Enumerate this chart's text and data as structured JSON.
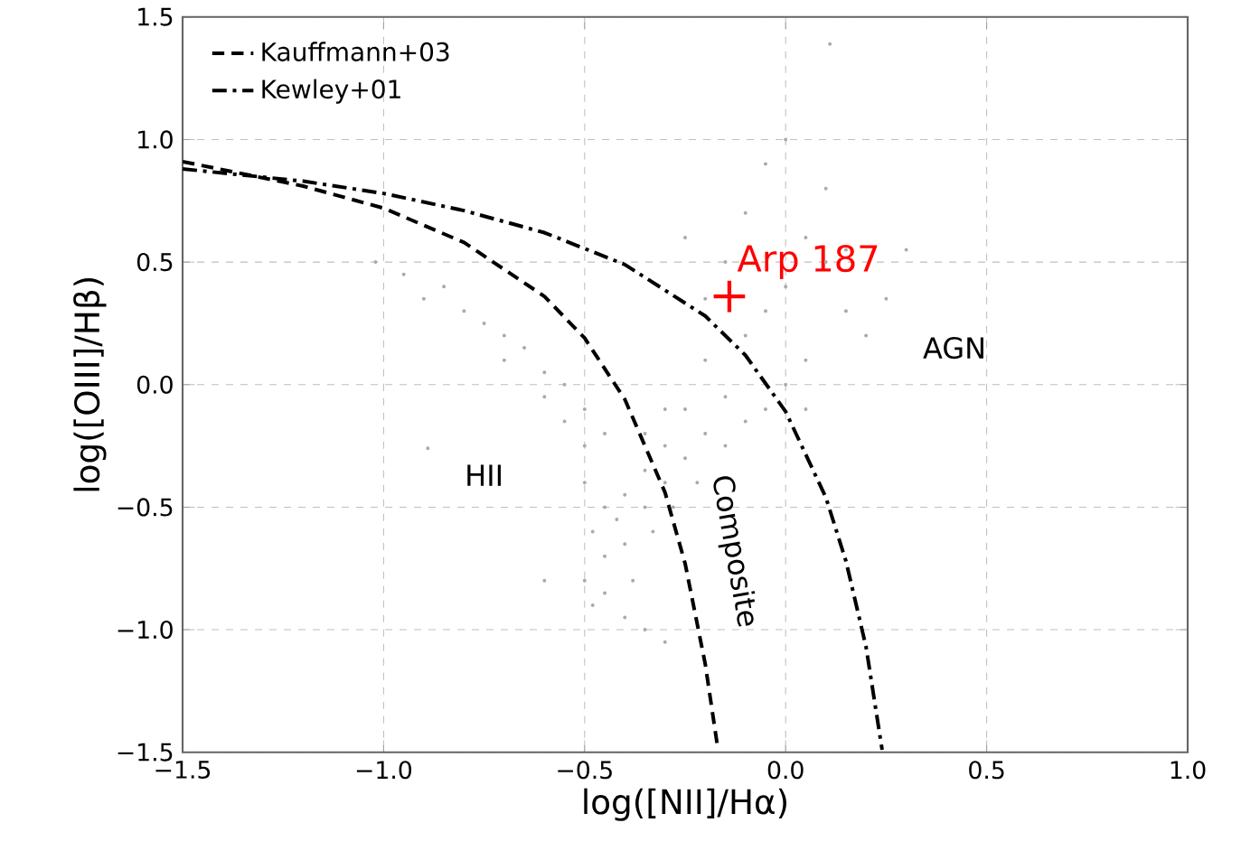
{
  "chart_data": {
    "type": "scatter",
    "xlabel": "log([NII]/Hα)",
    "ylabel": "log([OIII]/Hβ)",
    "xlim": [
      -1.5,
      1.0
    ],
    "ylim": [
      -1.5,
      1.5
    ],
    "xticks": [
      {
        "value": -1.5,
        "label": "−1.5"
      },
      {
        "value": -1.0,
        "label": "−1.0"
      },
      {
        "value": -0.5,
        "label": "−0.5"
      },
      {
        "value": 0.0,
        "label": "0.0"
      },
      {
        "value": 0.5,
        "label": "0.5"
      },
      {
        "value": 1.0,
        "label": "1.0"
      }
    ],
    "yticks": [
      {
        "value": -1.5,
        "label": "−1.5"
      },
      {
        "value": -1.0,
        "label": "−1.0"
      },
      {
        "value": -0.5,
        "label": "−0.5"
      },
      {
        "value": 0.0,
        "label": "0.0"
      },
      {
        "value": 0.5,
        "label": "0.5"
      },
      {
        "value": 1.0,
        "label": "1.0"
      },
      {
        "value": 1.5,
        "label": "1.5"
      }
    ],
    "grid": true,
    "legend": "top left",
    "series": [
      {
        "color": "#aaaaaa",
        "marker": "circle",
        "x": [
          -1.02,
          -0.95,
          -0.9,
          -0.85,
          -0.8,
          -0.75,
          -0.7,
          -0.7,
          -0.65,
          -0.6,
          -0.6,
          -0.55,
          -0.55,
          -0.5,
          -0.5,
          -0.45,
          -0.5,
          -0.48,
          -0.45,
          -0.45,
          -0.42,
          -0.4,
          -0.4,
          -0.38,
          -0.35,
          -0.35,
          -0.33,
          -0.3,
          -0.3,
          -0.28,
          -0.45,
          -0.5,
          -0.4,
          -0.35,
          -0.48,
          -0.25,
          -0.2,
          -0.22,
          -0.15,
          -0.1,
          -0.15,
          -0.25,
          -0.3,
          -0.35,
          -0.3,
          -0.6,
          -0.2,
          -0.1,
          -0.05,
          0.0,
          -0.15,
          -0.1,
          -0.05,
          0.0,
          0.05,
          0.1,
          0.15,
          0.2,
          0.25,
          0.05,
          0.0,
          -0.25,
          0.1,
          0.15,
          0.3,
          -0.2,
          0.05,
          -0.05,
          -0.89,
          0.11
        ],
        "values": [
          0.5,
          0.45,
          0.35,
          0.4,
          0.3,
          0.25,
          0.2,
          0.1,
          0.15,
          0.05,
          -0.05,
          0.0,
          -0.15,
          -0.1,
          -0.25,
          -0.2,
          -0.4,
          -0.6,
          -0.5,
          -0.7,
          -0.55,
          -0.45,
          -0.65,
          -0.8,
          -0.5,
          -0.35,
          -0.6,
          -0.4,
          -0.25,
          -0.5,
          -0.85,
          -0.8,
          -0.95,
          -1.0,
          -0.9,
          -0.3,
          -0.2,
          -0.4,
          -0.25,
          -0.15,
          -0.05,
          -0.1,
          -0.1,
          -0.2,
          -1.05,
          -0.8,
          0.1,
          0.2,
          0.3,
          0.4,
          0.5,
          0.7,
          0.9,
          1.0,
          0.6,
          0.5,
          0.3,
          0.2,
          0.35,
          0.1,
          0.0,
          0.6,
          0.8,
          0.55,
          0.55,
          0.35,
          -0.1,
          -0.1,
          -0.26,
          1.39
        ]
      },
      {
        "type": "line",
        "name": "Kauffmann+03",
        "color": "#000000",
        "line_style": "dashed",
        "x": [
          -1.5,
          -1.2,
          -1.0,
          -0.8,
          -0.6,
          -0.5,
          -0.4,
          -0.3,
          -0.25,
          -0.2,
          -0.17
        ],
        "values": [
          0.91,
          0.81,
          0.72,
          0.58,
          0.36,
          0.19,
          -0.06,
          -0.44,
          -0.73,
          -1.14,
          -1.47
        ]
      },
      {
        "type": "line",
        "name": "Kewley+01",
        "color": "#000000",
        "line_style": "dashdot",
        "x": [
          -1.5,
          -1.2,
          -1.0,
          -0.8,
          -0.6,
          -0.4,
          -0.2,
          -0.1,
          0.0,
          0.1,
          0.15,
          0.2,
          0.24
        ],
        "values": [
          0.88,
          0.83,
          0.78,
          0.71,
          0.62,
          0.49,
          0.28,
          0.12,
          -0.11,
          -0.46,
          -0.72,
          -1.07,
          -1.49
        ]
      },
      {
        "type": "scatter",
        "color": "#ff0000",
        "marker": "cross",
        "x": [
          -0.14
        ],
        "values": [
          0.36
        ]
      }
    ],
    "annotations": [
      {
        "text": "Arp 187",
        "x": -0.14,
        "y": 0.36
      },
      "HII",
      "Composite",
      "AGN"
    ]
  }
}
